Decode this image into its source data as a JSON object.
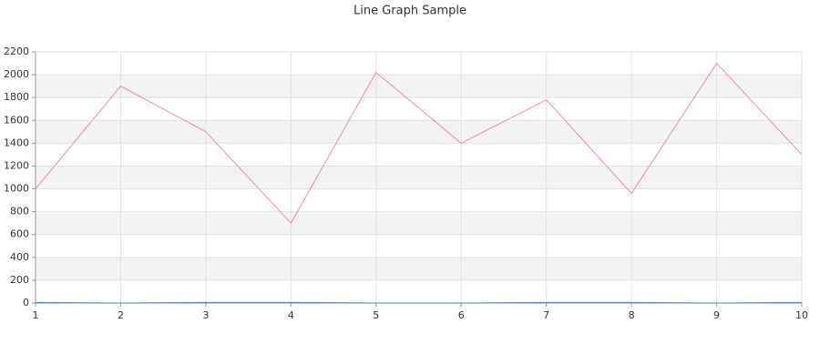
{
  "chart_data": {
    "type": "line",
    "title": "Line Graph Sample",
    "x": [
      1,
      2,
      3,
      4,
      5,
      6,
      7,
      8,
      9,
      10
    ],
    "series": [
      {
        "color": "#f28aa6",
        "values": [
          1000,
          1900,
          1500,
          700,
          2020,
          1400,
          1780,
          960,
          2100,
          1300
        ]
      },
      {
        "color": "#4e7fb8",
        "values": [
          5,
          0,
          5,
          5,
          0,
          0,
          5,
          5,
          0,
          5
        ]
      }
    ],
    "xlim": [
      1,
      10
    ],
    "xticks": [
      1,
      2,
      3,
      4,
      5,
      6,
      7,
      8,
      9,
      10
    ],
    "ylim": [
      0,
      2200
    ],
    "yticks": [
      0,
      200,
      400,
      600,
      800,
      1000,
      1200,
      1400,
      1600,
      1800,
      2000,
      2200
    ],
    "grid": true
  }
}
